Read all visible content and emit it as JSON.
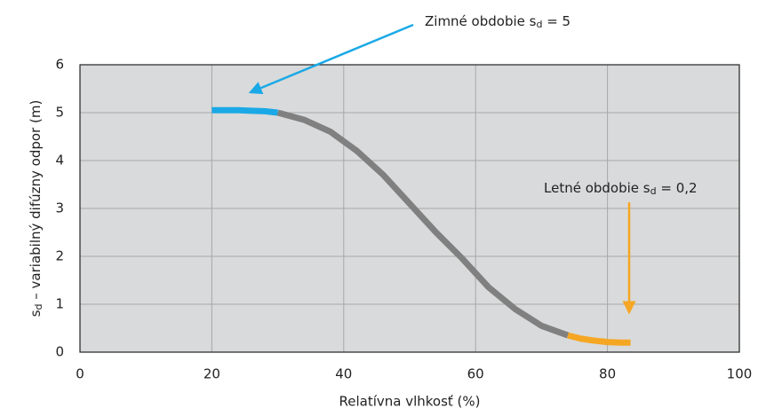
{
  "chart_data": {
    "type": "line",
    "x_label": "Relatívna vlhkosť (%)",
    "y_label": {
      "text": "s",
      "sub": "d",
      "tail": " – variabilný difúzny odpor  (m)"
    },
    "annotations": [
      {
        "text": "Zimné obdobie s",
        "sub": "d",
        "tail": " = 5",
        "color": "#1aa9e6"
      },
      {
        "text": "Letné obdobie s",
        "sub": "d",
        "tail": " = 0,2",
        "color": "#f5a623"
      }
    ],
    "series": [
      {
        "color": "#1aa9e6",
        "x": [
          20,
          22,
          24,
          26,
          28,
          30
        ],
        "values": [
          5.05,
          5.05,
          5.05,
          5.04,
          5.03,
          5.0
        ]
      },
      {
        "color": "#808080",
        "x": [
          30,
          34,
          38,
          42,
          46,
          50,
          54,
          58,
          62,
          66,
          70,
          74
        ],
        "values": [
          5.0,
          4.85,
          4.6,
          4.2,
          3.7,
          3.1,
          2.5,
          1.95,
          1.35,
          0.9,
          0.55,
          0.35
        ]
      },
      {
        "color": "#f5a623",
        "x": [
          74,
          76,
          78,
          80,
          82,
          83.5
        ],
        "values": [
          0.35,
          0.28,
          0.24,
          0.21,
          0.2,
          0.2
        ]
      }
    ],
    "xlim": [
      0,
      100
    ],
    "xticks": [
      0,
      20,
      40,
      60,
      80,
      100
    ],
    "ylim": [
      0,
      6
    ],
    "yticks": [
      0,
      1,
      2,
      3,
      4,
      5,
      6
    ],
    "grid": true,
    "background": "#d9dadb"
  }
}
